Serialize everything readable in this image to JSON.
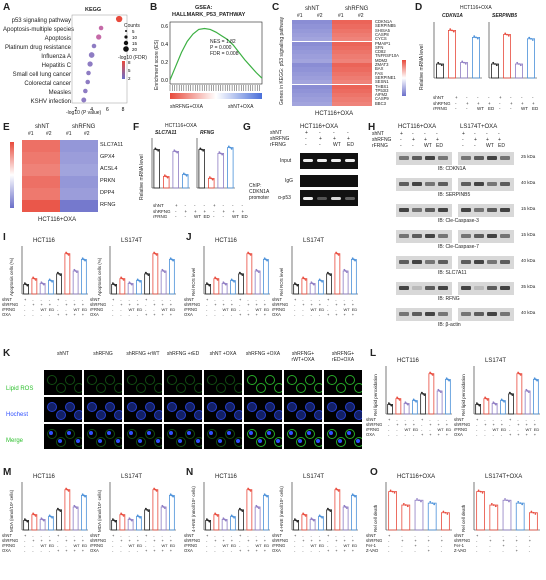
{
  "panels": {
    "A": {
      "letter": "A",
      "title": "KEGG",
      "terms": [
        "p53 signaling pathway",
        "Apoptosis-multiple species",
        "Apoptosis",
        "Platinum drug resistance",
        "Influenza A",
        "Hepatitis C",
        "Small cell lung cancer",
        "Colorectal cancer",
        "Measles",
        "KSHV infection"
      ],
      "pvals": [
        7.5,
        5.2,
        4.9,
        4.3,
        4.0,
        3.8,
        3.6,
        3.5,
        3.2,
        3.0
      ],
      "counts": [
        11,
        6,
        8,
        6,
        9,
        8,
        6,
        6,
        6,
        7
      ],
      "xlabel": "-log10 (P value)",
      "xticks": [
        "2",
        "4",
        "6",
        "8"
      ],
      "legend_counts_title": "Counts",
      "legend_counts": [
        "5",
        "10",
        "15",
        "20"
      ],
      "legend_fdr_title": "-log10 (FDR)",
      "legend_fdr": [
        "8",
        "5",
        "2"
      ]
    },
    "B": {
      "letter": "B",
      "title": "GSEA:",
      "subtitle": "HALLMARK_P53_PATHWAY",
      "ylabel": "Enrichment score (ES)",
      "yticks": [
        "0.6",
        "0.4",
        "0.2",
        "0.0"
      ],
      "stats": [
        "NES = 1.82",
        "P = 0.000",
        "FDR = 0.008"
      ],
      "left_label": "shRFNG+OXA",
      "right_label": "shNT+OXA",
      "es_curve": [
        0,
        0.15,
        0.3,
        0.42,
        0.5,
        0.55,
        0.56,
        0.55,
        0.52,
        0.48,
        0.44,
        0.38,
        0.3,
        0.22,
        0.15,
        0.08,
        0.02
      ]
    },
    "C": {
      "letter": "C",
      "group_labels": [
        "shNT",
        "shRFNG"
      ],
      "sub_labels": [
        "#1",
        "#2",
        "#1",
        "#2"
      ],
      "ylabel": "Genes in KEGG: p53 signaling pathway",
      "genes": [
        "CDKN1A",
        "SERPINB5",
        "SHISA5",
        "CASP8",
        "CYCS",
        "PMAIP1",
        "SFN",
        "CD82",
        "TNFRSF10A",
        "MDM2",
        "ZMAT3",
        "BAX",
        "FAS",
        "SERPINE1",
        "SESN1",
        "THBS1",
        "TP53I3",
        "AIFM2",
        "CASP9",
        "BBC3"
      ],
      "xlabel": "HCT116+OXA",
      "scale": [
        "2",
        "1",
        "0",
        "-1",
        "-2"
      ]
    },
    "D": {
      "letter": "D",
      "title": "HCT116+OXA",
      "genes": [
        "CDKN1A",
        "SERPINB5"
      ],
      "ylabel": "Relative mRNA level",
      "rows": [
        "shNT",
        "shRFNG",
        "rFRNG"
      ],
      "sig": [
        "***",
        "***",
        "***",
        "***"
      ]
    },
    "E": {
      "letter": "E",
      "group_labels": [
        "shNT",
        "shRFNG"
      ],
      "sub_labels": [
        "#1",
        "#2",
        "#1",
        "#2"
      ],
      "genes": [
        "SLC7A11",
        "GPX4",
        "ACSL4",
        "PRKN",
        "DPP4",
        "RFNG"
      ],
      "xlabel": "HCT116+OXA",
      "scale": [
        "1",
        "0.5",
        "0",
        "-0.5",
        "-1"
      ]
    },
    "F": {
      "letter": "F",
      "title": "HCT116+OXA",
      "genes": [
        "SLC7A11",
        "RFNG"
      ],
      "ylabel": "Relative mRNA level",
      "rows": [
        "shNT",
        "shRFNG",
        "rFRNG"
      ],
      "sig": [
        "***",
        "***",
        "***"
      ]
    },
    "G": {
      "letter": "G",
      "title": "HCT116+OXA",
      "rows": [
        "shNT",
        "shRFNG",
        "rFRNG"
      ],
      "row_vals": [
        [
          "+",
          "-",
          "-",
          "-"
        ],
        [
          "-",
          "+",
          "+",
          "+"
        ],
        [
          "-",
          "-",
          "WT",
          "ED"
        ]
      ],
      "lane_labels": [
        "Input",
        "IgG",
        "α-p53"
      ],
      "chip_label": "ChIP: CDKN1A promoter"
    },
    "H": {
      "letter": "H",
      "titles": [
        "HCT116+OXA",
        "LS174T+OXA"
      ],
      "rows": [
        "shNT",
        "shRFNG",
        "rFRNG"
      ],
      "blots": [
        "IB: CDKN1A",
        "IB: SERPINB5",
        "IB: Cle-Caspase-3",
        "IB: Cle-Caspase-7",
        "IB: SLC7A11",
        "IB: RFNG",
        "IB: β-actin"
      ],
      "kda": [
        "25 kDa",
        "40 kDa",
        "15 kDa",
        "15 kDa",
        "40 kDa",
        "35 kDa",
        "40 kDa"
      ]
    },
    "I": {
      "letter": "I",
      "titles": [
        "HCT116",
        "LS174T"
      ],
      "ylabel": "Apoptosis cells (%)",
      "rows": [
        "shNT",
        "shRFNG",
        "rFRNG",
        "OXA"
      ]
    },
    "J": {
      "letter": "J",
      "titles": [
        "HCT116",
        "LS174T"
      ],
      "ylabel": "Rel ROS level",
      "rows": [
        "shNT",
        "shRFNG",
        "rFRNG",
        "OXA"
      ]
    },
    "K": {
      "letter": "K",
      "cols": [
        "shNT",
        "shRFNG",
        "shRFNG +rWT",
        "shRFNG +rED",
        "shNT +OXA",
        "shRFNG +OXA",
        "shRFNG+ rWT+OXA",
        "shRFNG+ rED+OXA"
      ],
      "rows": [
        "Lipid ROS",
        "Hochest",
        "Merge"
      ]
    },
    "L": {
      "letter": "L",
      "titles": [
        "HCT116",
        "LS174T"
      ],
      "ylabel": "Rel lipid peroxidation",
      "rows": [
        "shNT",
        "shRFNG",
        "rFRNG",
        "OXA"
      ]
    },
    "M": {
      "letter": "M",
      "titles": [
        "HCT116",
        "LS174T"
      ],
      "ylabel": "MDA (nmol/10⁶ cells)",
      "rows": [
        "shNT",
        "shRFNG",
        "rFRNG",
        "OXA"
      ]
    },
    "N": {
      "letter": "N",
      "titles": [
        "HCT116",
        "LS174T"
      ],
      "ylabel": "4-HNE (nmol/10⁶ cells)",
      "rows": [
        "shNT",
        "shRFNG",
        "rFRNG",
        "OXA"
      ]
    },
    "O": {
      "letter": "O",
      "titles": [
        "HCT116+OXA",
        "LS174T+OXA"
      ],
      "ylabel": "Rel cell death",
      "rows": [
        "shNT",
        "shRFNG",
        "Fer-1",
        "Z-VAD"
      ]
    }
  },
  "colors": {
    "black": "#222222",
    "red": "#e84a3c",
    "purple": "#8e7cc3",
    "blue": "#4a90d9",
    "heat_hi": "#e84a3c",
    "heat_lo": "#6b6fc9"
  }
}
